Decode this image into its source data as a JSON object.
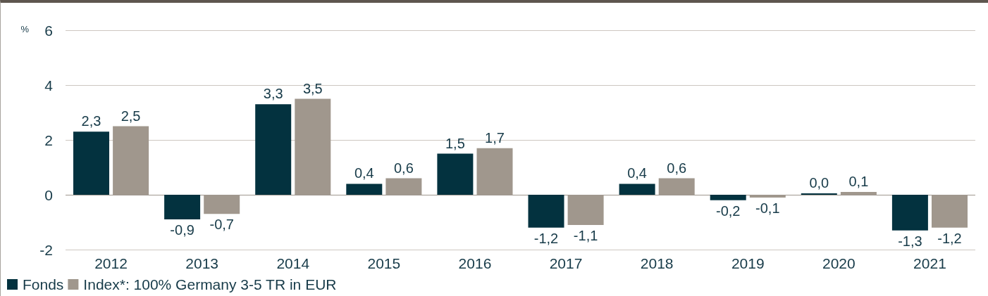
{
  "chart_data": {
    "type": "bar",
    "ylabel": "%",
    "categories": [
      "2012",
      "2013",
      "2014",
      "2015",
      "2016",
      "2017",
      "2018",
      "2019",
      "2020",
      "2021"
    ],
    "series": [
      {
        "name": "Fonds",
        "color": "#03323f",
        "values": [
          2.3,
          -0.9,
          3.3,
          0.4,
          1.5,
          -1.2,
          0.4,
          -0.2,
          0.0,
          -1.3
        ],
        "value_labels": [
          "2,3",
          "-0,9",
          "3,3",
          "0,4",
          "1,5",
          "-1,2",
          "0,4",
          "-0,2",
          "0,0",
          "-1,3"
        ]
      },
      {
        "name": "Index*: 100% Germany 3-5 TR in EUR",
        "color": "#a0978d",
        "values": [
          2.5,
          -0.7,
          3.5,
          0.6,
          1.7,
          -1.1,
          0.6,
          -0.1,
          0.1,
          -1.2
        ],
        "value_labels": [
          "2,5",
          "-0,7",
          "3,5",
          "0,6",
          "1,7",
          "-1,1",
          "0,6",
          "-0,1",
          "0,1",
          "-1,2"
        ]
      }
    ],
    "ylim": [
      -2,
      6
    ],
    "yticks": [
      -2,
      0,
      2,
      4,
      6
    ],
    "grid": "y",
    "legend": "bottom left"
  }
}
